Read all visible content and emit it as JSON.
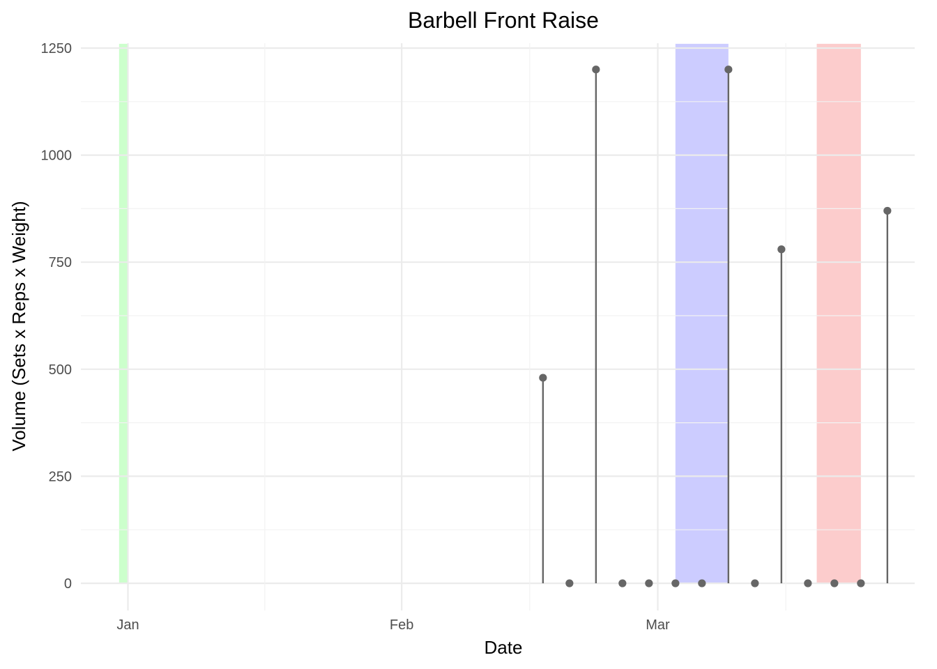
{
  "chart_data": {
    "type": "scatter",
    "subtype": "lollipop",
    "title": "Barbell Front Raise",
    "xlabel": "Date",
    "ylabel": "Volume (Sets x Reps x Weight)",
    "x_type": "date",
    "xlim": [
      "2024-12-29",
      "2024-03-31"
    ],
    "ylim": [
      -60,
      1260
    ],
    "x_ticks": [
      {
        "label": "Jan",
        "date": "2024-01-01"
      },
      {
        "label": "Feb",
        "date": "2024-02-01"
      },
      {
        "label": "Mar",
        "date": "2024-03-01"
      }
    ],
    "y_ticks": [
      0,
      250,
      500,
      750,
      1000,
      1250
    ],
    "grid": true,
    "points": [
      {
        "date": "2024-02-17",
        "value": 480
      },
      {
        "date": "2024-02-20",
        "value": 0
      },
      {
        "date": "2024-02-23",
        "value": 1200
      },
      {
        "date": "2024-02-26",
        "value": 0
      },
      {
        "date": "2024-02-29",
        "value": 0
      },
      {
        "date": "2024-03-03",
        "value": 0
      },
      {
        "date": "2024-03-06",
        "value": 0
      },
      {
        "date": "2024-03-09",
        "value": 1200
      },
      {
        "date": "2024-03-12",
        "value": 0
      },
      {
        "date": "2024-03-15",
        "value": 780
      },
      {
        "date": "2024-03-18",
        "value": 0
      },
      {
        "date": "2024-03-21",
        "value": 0
      },
      {
        "date": "2024-03-24",
        "value": 0
      },
      {
        "date": "2024-03-27",
        "value": 870
      }
    ],
    "highlight_bands": [
      {
        "start": "2023-12-31",
        "end": "2024-01-01",
        "color": "#ccffcc"
      },
      {
        "start": "2024-03-03",
        "end": "2024-03-09",
        "color": "#ccccff"
      },
      {
        "start": "2024-03-19",
        "end": "2024-03-24",
        "color": "#fccccc"
      }
    ],
    "colors": {
      "stem": "#666666",
      "point": "#666666"
    }
  }
}
